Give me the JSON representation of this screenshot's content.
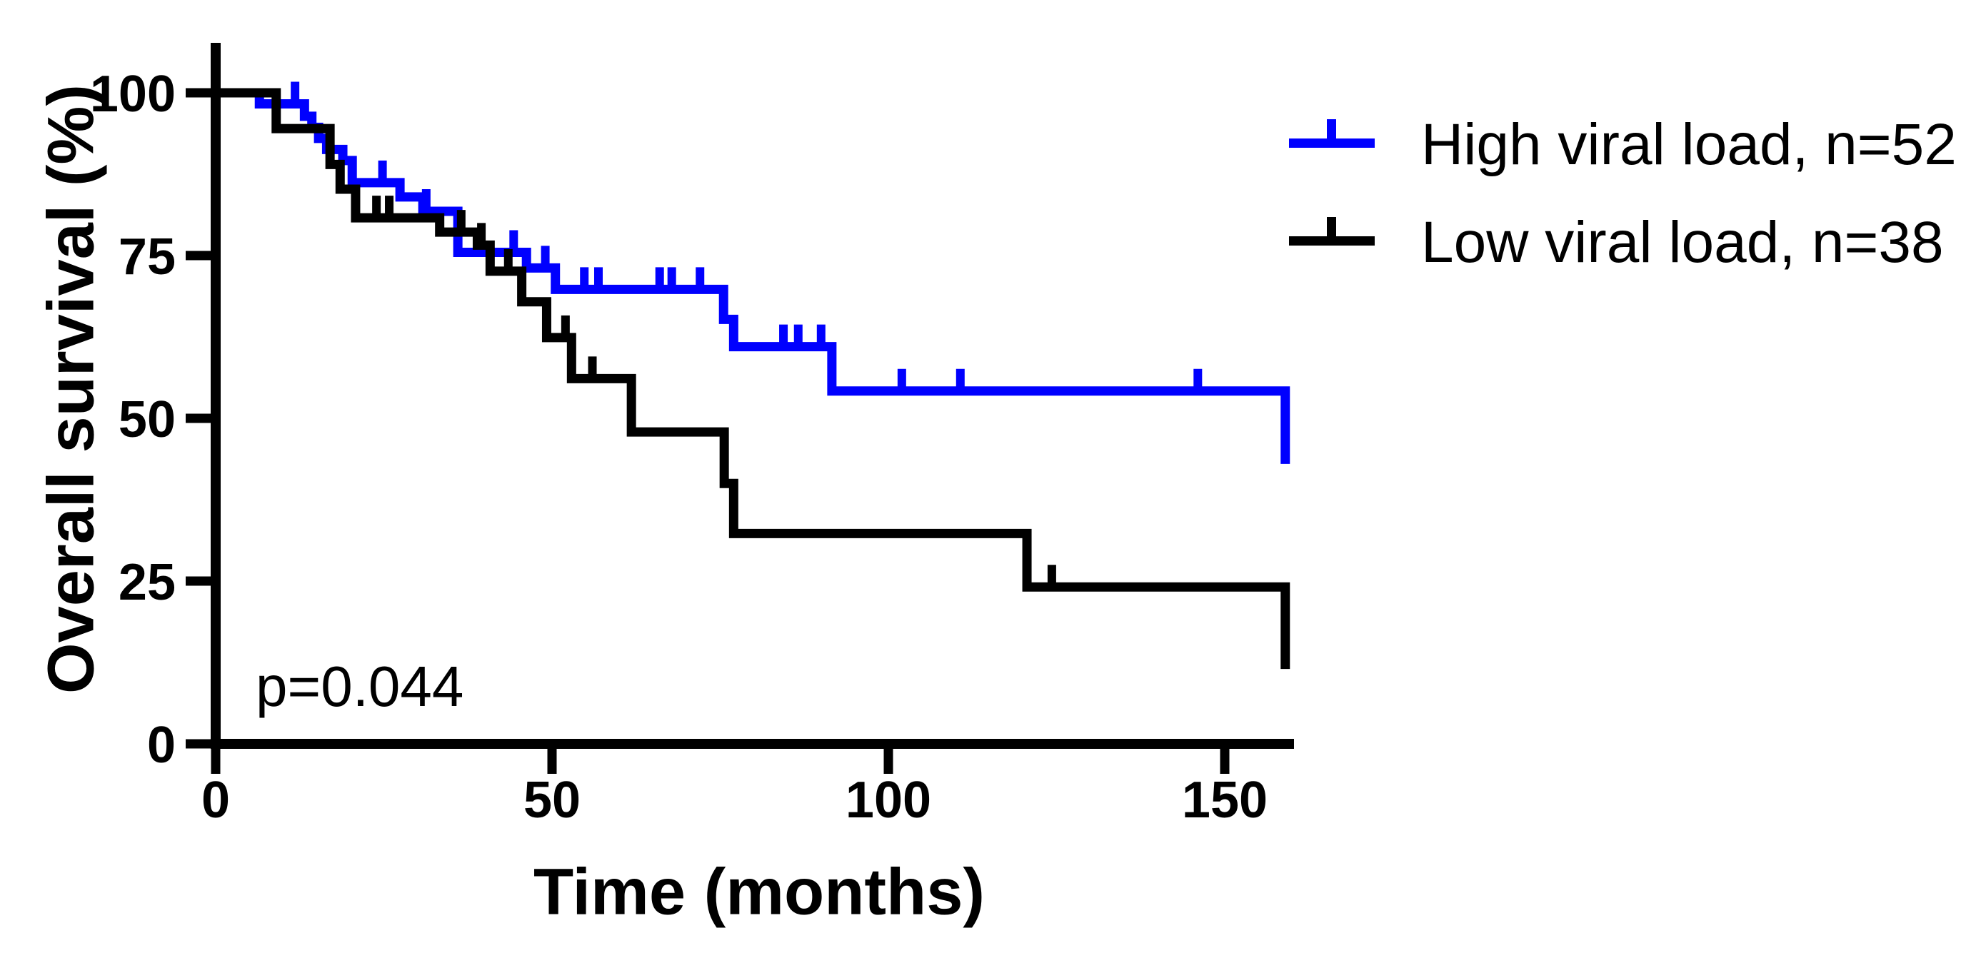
{
  "figure": {
    "background_color": "#ffffff",
    "axis_color": "#000000",
    "p_value": "p=0.044"
  },
  "axes": {
    "x": {
      "title": "Time (months)",
      "ticks": [
        0,
        50,
        100,
        150
      ],
      "range": [
        0,
        160
      ]
    },
    "y": {
      "title": "Overall survival (%)",
      "ticks": [
        100,
        75,
        50,
        25,
        0
      ],
      "range": [
        0,
        100
      ]
    }
  },
  "chart_data": {
    "type": "line",
    "subtype": "kaplan_meier_step_survival",
    "title": "",
    "xlabel": "Time (months)",
    "ylabel": "Overall survival (%)",
    "xlim": [
      0,
      160
    ],
    "ylim": [
      0,
      100
    ],
    "grid": false,
    "annotation": "p=0.044",
    "legend_position": "outside-top-right",
    "series": [
      {
        "name": "High viral load, n=52",
        "color": "#0000fe",
        "n": 52,
        "steps": [
          [
            0,
            100
          ],
          [
            6.5,
            98.3
          ],
          [
            13.2,
            96.4
          ],
          [
            14.3,
            94.7
          ],
          [
            15.3,
            93.0
          ],
          [
            16.5,
            91.3
          ],
          [
            18.9,
            89.6
          ],
          [
            20.3,
            86.2
          ],
          [
            27.4,
            84.0
          ],
          [
            30.8,
            81.8
          ],
          [
            36,
            75.5
          ],
          [
            46.2,
            73.1
          ],
          [
            50.5,
            69.8
          ],
          [
            75.5,
            65.2
          ],
          [
            77,
            61.0
          ],
          [
            91.6,
            54.2
          ],
          [
            159,
            43.0
          ]
        ],
        "censor_times": [
          11.8,
          24.8,
          31.3,
          44.3,
          49,
          54.8,
          56.9,
          66,
          67.8,
          72,
          84.4,
          86.6,
          90,
          102,
          110.7,
          146
        ]
      },
      {
        "name": "Low viral load, n=38",
        "color": "#000000",
        "n": 38,
        "steps": [
          [
            0,
            100
          ],
          [
            9,
            94.5
          ],
          [
            17,
            89.0
          ],
          [
            18.5,
            85.2
          ],
          [
            20.8,
            80.8
          ],
          [
            33.3,
            78.6
          ],
          [
            38.9,
            76.6
          ],
          [
            40.8,
            72.6
          ],
          [
            45.5,
            67.9
          ],
          [
            49.2,
            62.4
          ],
          [
            52.9,
            56.1
          ],
          [
            61.8,
            47.9
          ],
          [
            75.6,
            40.0
          ],
          [
            77,
            32.3
          ],
          [
            120.6,
            24.1
          ],
          [
            159,
            11.5
          ]
        ],
        "censor_times": [
          23.9,
          25.8,
          36.5,
          39.5,
          43.5,
          52,
          56,
          124.3
        ]
      }
    ]
  }
}
